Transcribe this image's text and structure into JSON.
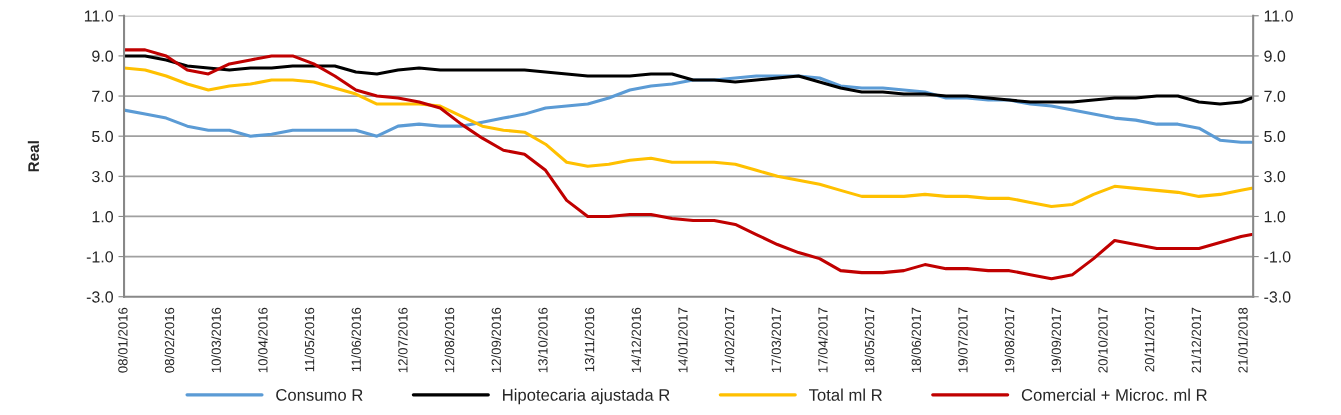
{
  "chart_data": {
    "type": "line",
    "ylabel": "Real",
    "x": [
      "2016-01-08",
      "2016-01-22",
      "2016-02-05",
      "2016-02-19",
      "2016-03-04",
      "2016-03-18",
      "2016-04-01",
      "2016-04-15",
      "2016-04-29",
      "2016-05-13",
      "2016-05-27",
      "2016-06-10",
      "2016-06-24",
      "2016-07-08",
      "2016-07-22",
      "2016-08-05",
      "2016-08-19",
      "2016-09-02",
      "2016-09-16",
      "2016-09-30",
      "2016-10-14",
      "2016-10-28",
      "2016-11-11",
      "2016-11-25",
      "2016-12-09",
      "2016-12-23",
      "2017-01-06",
      "2017-01-20",
      "2017-02-03",
      "2017-02-17",
      "2017-03-03",
      "2017-03-17",
      "2017-03-31",
      "2017-04-14",
      "2017-04-28",
      "2017-05-12",
      "2017-05-26",
      "2017-06-09",
      "2017-06-23",
      "2017-07-07",
      "2017-07-21",
      "2017-08-04",
      "2017-08-18",
      "2017-09-01",
      "2017-09-15",
      "2017-09-29",
      "2017-10-13",
      "2017-10-27",
      "2017-11-10",
      "2017-11-24",
      "2017-12-08",
      "2017-12-22",
      "2018-01-05",
      "2018-01-19",
      "2018-01-26"
    ],
    "series": [
      {
        "name": "Consumo R",
        "color": "#5b9bd5",
        "values": [
          6.3,
          6.1,
          5.9,
          5.5,
          5.3,
          5.3,
          5.0,
          5.1,
          5.3,
          5.3,
          5.3,
          5.3,
          5.0,
          5.5,
          5.6,
          5.5,
          5.5,
          5.7,
          5.9,
          6.1,
          6.4,
          6.5,
          6.6,
          6.9,
          7.3,
          7.5,
          7.6,
          7.8,
          7.8,
          7.9,
          8.0,
          8.0,
          8.0,
          7.9,
          7.5,
          7.4,
          7.4,
          7.3,
          7.2,
          6.9,
          6.9,
          6.8,
          6.8,
          6.6,
          6.5,
          6.3,
          6.1,
          5.9,
          5.8,
          5.6,
          5.6,
          5.4,
          4.8,
          4.7,
          4.7
        ]
      },
      {
        "name": "Hipotecaria ajustada R",
        "color": "#000000",
        "values": [
          9.0,
          9.0,
          8.8,
          8.5,
          8.4,
          8.3,
          8.4,
          8.4,
          8.5,
          8.5,
          8.5,
          8.2,
          8.1,
          8.3,
          8.4,
          8.3,
          8.3,
          8.3,
          8.3,
          8.3,
          8.2,
          8.1,
          8.0,
          8.0,
          8.0,
          8.1,
          8.1,
          7.8,
          7.8,
          7.7,
          7.8,
          7.9,
          8.0,
          7.7,
          7.4,
          7.2,
          7.2,
          7.1,
          7.1,
          7.0,
          7.0,
          6.9,
          6.8,
          6.7,
          6.7,
          6.7,
          6.8,
          6.9,
          6.9,
          7.0,
          7.0,
          6.7,
          6.6,
          6.7,
          6.9
        ]
      },
      {
        "name": "Total ml R",
        "color": "#ffc000",
        "values": [
          8.4,
          8.3,
          8.0,
          7.6,
          7.3,
          7.5,
          7.6,
          7.8,
          7.8,
          7.7,
          7.4,
          7.1,
          6.6,
          6.6,
          6.6,
          6.5,
          6.0,
          5.5,
          5.3,
          5.2,
          4.6,
          3.7,
          3.5,
          3.6,
          3.8,
          3.9,
          3.7,
          3.7,
          3.7,
          3.6,
          3.3,
          3.0,
          2.8,
          2.6,
          2.3,
          2.0,
          2.0,
          2.0,
          2.1,
          2.0,
          2.0,
          1.9,
          1.9,
          1.7,
          1.5,
          1.6,
          2.1,
          2.5,
          2.4,
          2.3,
          2.2,
          2.0,
          2.1,
          2.3,
          2.4
        ]
      },
      {
        "name": "Comercial + Microc. ml R",
        "color": "#c00000",
        "values": [
          9.3,
          9.3,
          9.0,
          8.3,
          8.1,
          8.6,
          8.8,
          9.0,
          9.0,
          8.6,
          8.0,
          7.3,
          7.0,
          6.9,
          6.7,
          6.4,
          5.6,
          4.9,
          4.3,
          4.1,
          3.3,
          1.8,
          1.0,
          1.0,
          1.1,
          1.1,
          0.9,
          0.8,
          0.8,
          0.6,
          0.1,
          -0.4,
          -0.8,
          -1.1,
          -1.7,
          -1.8,
          -1.8,
          -1.7,
          -1.4,
          -1.6,
          -1.6,
          -1.7,
          -1.7,
          -1.9,
          -2.1,
          -1.9,
          -1.1,
          -0.2,
          -0.4,
          -0.6,
          -0.6,
          -0.6,
          -0.3,
          0.0,
          0.1
        ]
      }
    ],
    "xlim": [
      "2016-01-08",
      "2018-01-27"
    ],
    "xticks": [
      {
        "value": "2016-01-08",
        "label": "08/01/2016"
      },
      {
        "value": "2016-02-08",
        "label": "08/02/2016"
      },
      {
        "value": "2016-03-10",
        "label": "10/03/2016"
      },
      {
        "value": "2016-04-10",
        "label": "10/04/2016"
      },
      {
        "value": "2016-05-11",
        "label": "11/05/2016"
      },
      {
        "value": "2016-06-11",
        "label": "11/06/2016"
      },
      {
        "value": "2016-07-12",
        "label": "12/07/2016"
      },
      {
        "value": "2016-08-12",
        "label": "12/08/2016"
      },
      {
        "value": "2016-09-12",
        "label": "12/09/2016"
      },
      {
        "value": "2016-10-13",
        "label": "13/10/2016"
      },
      {
        "value": "2016-11-13",
        "label": "13/11/2016"
      },
      {
        "value": "2016-12-14",
        "label": "14/12/2016"
      },
      {
        "value": "2017-01-14",
        "label": "14/01/2017"
      },
      {
        "value": "2017-02-14",
        "label": "14/02/2017"
      },
      {
        "value": "2017-03-17",
        "label": "17/03/2017"
      },
      {
        "value": "2017-04-17",
        "label": "17/04/2017"
      },
      {
        "value": "2017-05-18",
        "label": "18/05/2017"
      },
      {
        "value": "2017-06-18",
        "label": "18/06/2017"
      },
      {
        "value": "2017-07-19",
        "label": "19/07/2017"
      },
      {
        "value": "2017-08-19",
        "label": "19/08/2017"
      },
      {
        "value": "2017-09-19",
        "label": "19/09/2017"
      },
      {
        "value": "2017-10-20",
        "label": "20/10/2017"
      },
      {
        "value": "2017-11-20",
        "label": "20/11/2017"
      },
      {
        "value": "2017-12-21",
        "label": "21/12/2017"
      },
      {
        "value": "2018-01-21",
        "label": "21/01/2018"
      }
    ],
    "ylim": [
      -3,
      11
    ],
    "yticks": [
      {
        "value": -3,
        "label": "-3.0"
      },
      {
        "value": -1,
        "label": "-1.0"
      },
      {
        "value": 1,
        "label": "1.0"
      },
      {
        "value": 3,
        "label": "3.0"
      },
      {
        "value": 5,
        "label": "5.0"
      },
      {
        "value": 7,
        "label": "7.0"
      },
      {
        "value": 9,
        "label": "9.0"
      },
      {
        "value": 11,
        "label": "11.0"
      }
    ],
    "y2lim": [
      -3,
      11
    ],
    "y2ticks": [
      {
        "value": -3,
        "label": "-3.0"
      },
      {
        "value": -1,
        "label": "-1.0"
      },
      {
        "value": 1,
        "label": "1.0"
      },
      {
        "value": 3,
        "label": "3.0"
      },
      {
        "value": 5,
        "label": "5.0"
      },
      {
        "value": 7,
        "label": "7.0"
      },
      {
        "value": 9,
        "label": "9.0"
      },
      {
        "value": 11,
        "label": "11.0"
      }
    ],
    "grid": "y",
    "legend": "bottom",
    "marker": "none",
    "line_style": "solid"
  }
}
